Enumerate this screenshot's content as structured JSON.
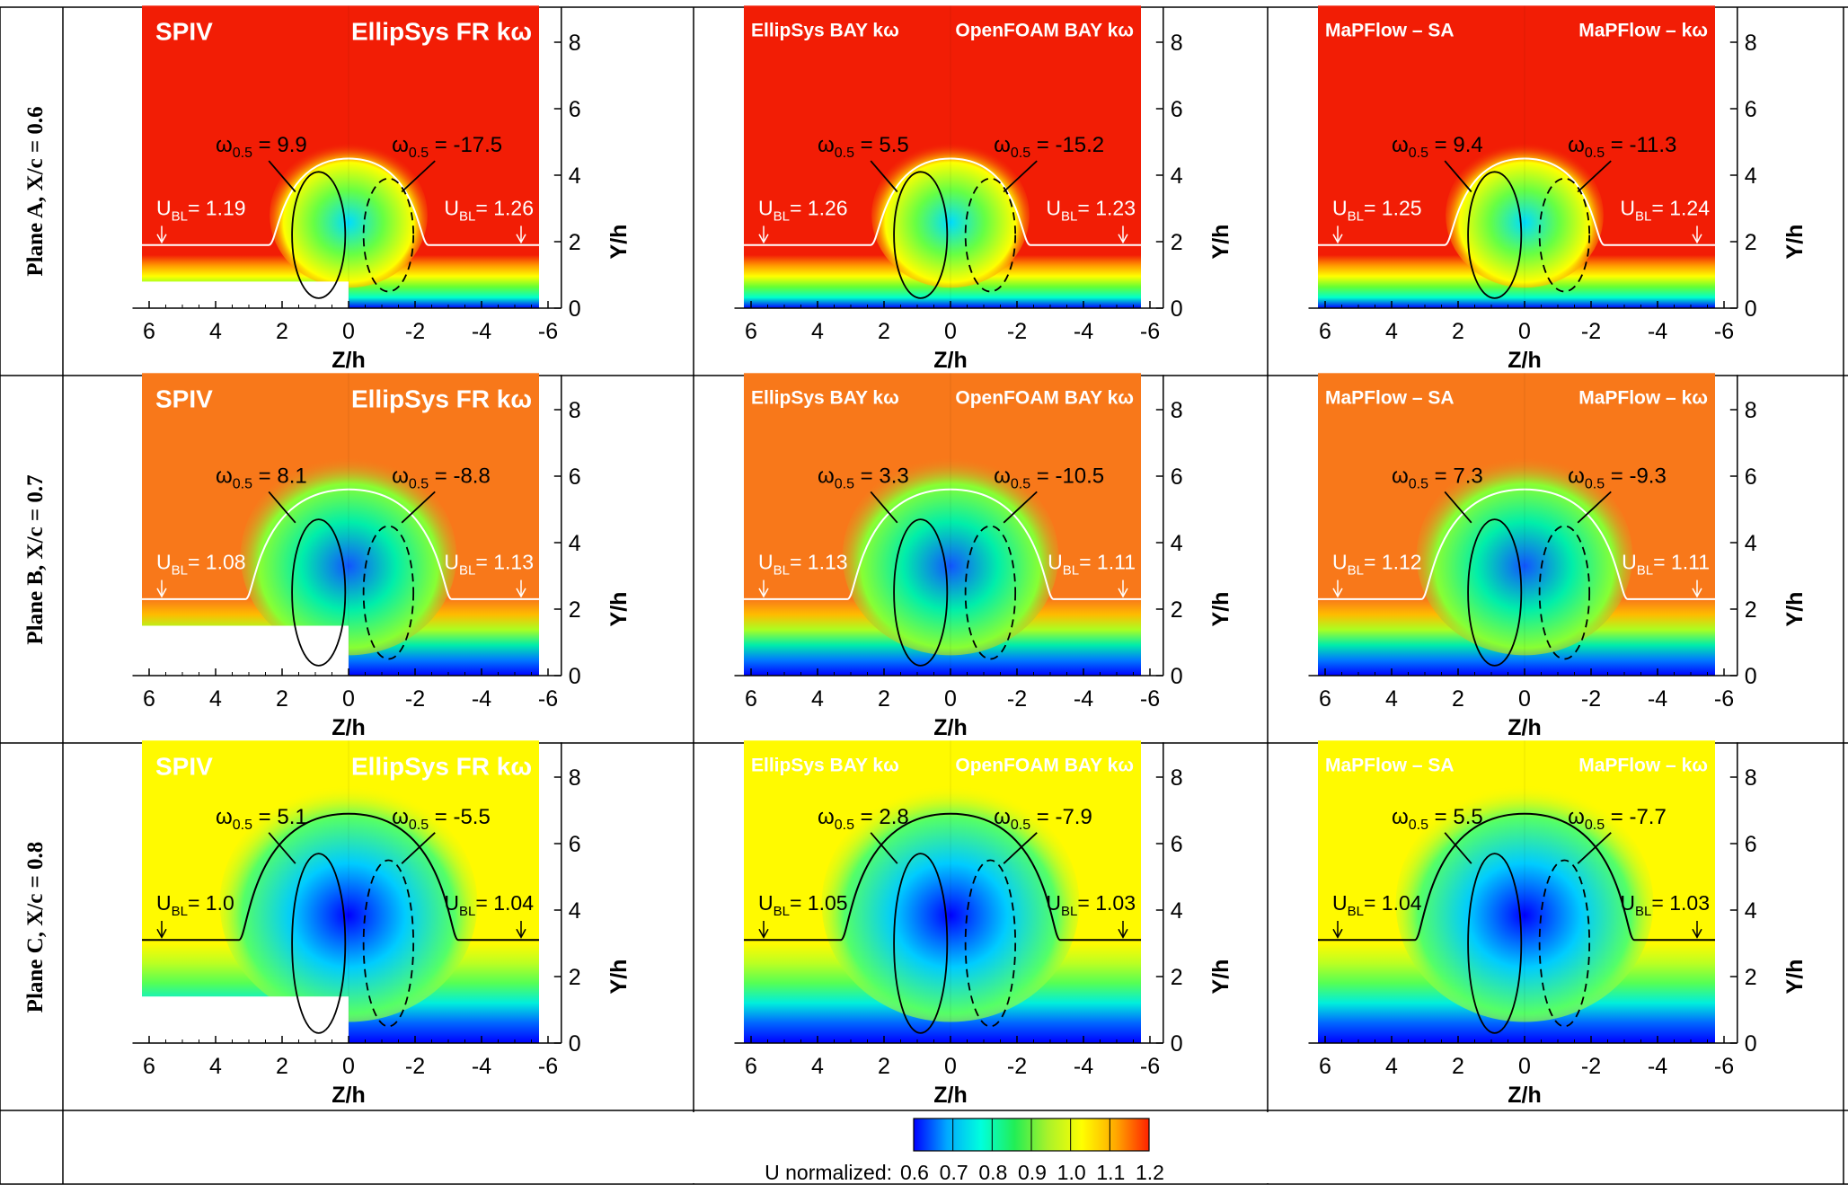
{
  "figure": {
    "rows": [
      {
        "label": "Plane A, X/c = 0.6",
        "theme": "A"
      },
      {
        "label": "Plane B, X/c = 0.7",
        "theme": "B"
      },
      {
        "label": "Plane C, X/c = 0.8",
        "theme": "C"
      }
    ],
    "axis": {
      "xlabel": "Z/h",
      "ylabel": "Y/h",
      "xticks": [
        "6",
        "4",
        "2",
        "0",
        "-2",
        "-4",
        "-6"
      ],
      "yticks": [
        "0",
        "2",
        "4",
        "6",
        "8"
      ]
    },
    "panels": [
      {
        "row": 0,
        "col": 0,
        "left": "SPIV",
        "right": "EllipSys FR kω",
        "w_left": "9.9",
        "w_right": "-17.5",
        "ubl_left": "1.19",
        "ubl_right": "1.26"
      },
      {
        "row": 0,
        "col": 1,
        "left": "EllipSys BAY kω",
        "right": "OpenFOAM BAY kω",
        "w_left": "5.5",
        "w_right": "-15.2",
        "ubl_left": "1.26",
        "ubl_right": "1.23"
      },
      {
        "row": 0,
        "col": 2,
        "left": "MaPFlow – SA",
        "right": "MaPFlow – kω",
        "w_left": "9.4",
        "w_right": "-11.3",
        "ubl_left": "1.25",
        "ubl_right": "1.24"
      },
      {
        "row": 1,
        "col": 0,
        "left": "SPIV",
        "right": "EllipSys FR kω",
        "w_left": "8.1",
        "w_right": "-8.8",
        "ubl_left": "1.08",
        "ubl_right": "1.13"
      },
      {
        "row": 1,
        "col": 1,
        "left": "EllipSys BAY kω",
        "right": "OpenFOAM BAY kω",
        "w_left": "3.3",
        "w_right": "-10.5",
        "ubl_left": "1.13",
        "ubl_right": "1.11"
      },
      {
        "row": 1,
        "col": 2,
        "left": "MaPFlow – SA",
        "right": "MaPFlow – kω",
        "w_left": "7.3",
        "w_right": "-9.3",
        "ubl_left": "1.12",
        "ubl_right": "1.11"
      },
      {
        "row": 2,
        "col": 0,
        "left": "SPIV",
        "right": "EllipSys FR kω",
        "w_left": "5.1",
        "w_right": "-5.5",
        "ubl_left": "1.0",
        "ubl_right": "1.04"
      },
      {
        "row": 2,
        "col": 1,
        "left": "EllipSys BAY kω",
        "right": "OpenFOAM BAY kω",
        "w_left": "2.8",
        "w_right": "-7.9",
        "ubl_left": "1.05",
        "ubl_right": "1.03"
      },
      {
        "row": 2,
        "col": 2,
        "left": "MaPFlow – SA",
        "right": "MaPFlow – kω",
        "w_left": "5.5",
        "w_right": "-7.7",
        "ubl_left": "1.04",
        "ubl_right": "1.03"
      }
    ],
    "colorbar": {
      "label": "U normalized:",
      "ticks": [
        "0.6",
        "0.7",
        "0.8",
        "0.9",
        "1.0",
        "1.1",
        "1.2"
      ],
      "colors": [
        "#0000ff",
        "#00aaff",
        "#00ffdd",
        "#22ee55",
        "#aaf22a",
        "#ffff00",
        "#ffaa00",
        "#ff2200"
      ]
    },
    "themes": {
      "A": {
        "bg": "#f21d05",
        "band": [
          "#ff9a00",
          "#ffff00",
          "#66ff33",
          "#00ffcc",
          "#0000ff"
        ]
      },
      "B": {
        "bg": "#f8781a",
        "band": [
          "#ffbb00",
          "#aaff22",
          "#00eeaa",
          "#0077ff",
          "#0000ff"
        ]
      },
      "C": {
        "bg": "#fffa00",
        "band": [
          "#bbff22",
          "#55ff55",
          "#00eedd",
          "#0066ff",
          "#0000ff"
        ]
      }
    }
  },
  "chart_data": {
    "type": "heatmap",
    "description_variable": "U normalized",
    "xlabel": "Z/h",
    "ylabel": "Y/h",
    "xlim": [
      6,
      -6
    ],
    "ylim": [
      0,
      9
    ],
    "colorbar_range": [
      0.6,
      1.2
    ],
    "planes": [
      {
        "plane": "Plane A, X/c = 0.6",
        "omega_0.5": {
          "SPIV": 9.9,
          "EllipSys FR kω": -17.5,
          "EllipSys BAY kω": 5.5,
          "OpenFOAM BAY kω": -15.2,
          "MaPFlow – SA": 9.4,
          "MaPFlow – kω": -11.3
        },
        "U_BL": {
          "SPIV": 1.19,
          "EllipSys FR kω": 1.26,
          "EllipSys BAY kω": 1.26,
          "OpenFOAM BAY kω": 1.23,
          "MaPFlow – SA": 1.25,
          "MaPFlow – kω": 1.24
        }
      },
      {
        "plane": "Plane B, X/c = 0.7",
        "omega_0.5": {
          "SPIV": 8.1,
          "EllipSys FR kω": -8.8,
          "EllipSys BAY kω": 3.3,
          "OpenFOAM BAY kω": -10.5,
          "MaPFlow – SA": 7.3,
          "MaPFlow – kω": -9.3
        },
        "U_BL": {
          "SPIV": 1.08,
          "EllipSys FR kω": 1.13,
          "EllipSys BAY kω": 1.13,
          "OpenFOAM BAY kω": 1.11,
          "MaPFlow – SA": 1.12,
          "MaPFlow – kω": 1.11
        }
      },
      {
        "plane": "Plane C, X/c = 0.8",
        "omega_0.5": {
          "SPIV": 5.1,
          "EllipSys FR kω": -5.5,
          "EllipSys BAY kω": 2.8,
          "OpenFOAM BAY kω": -7.9,
          "MaPFlow – SA": 5.5,
          "MaPFlow – kω": -7.7
        },
        "U_BL": {
          "SPIV": 1.0,
          "EllipSys FR kω": 1.04,
          "EllipSys BAY kω": 1.05,
          "OpenFOAM BAY kω": 1.03,
          "MaPFlow – SA": 1.04,
          "MaPFlow – kω": 1.03
        }
      }
    ]
  }
}
